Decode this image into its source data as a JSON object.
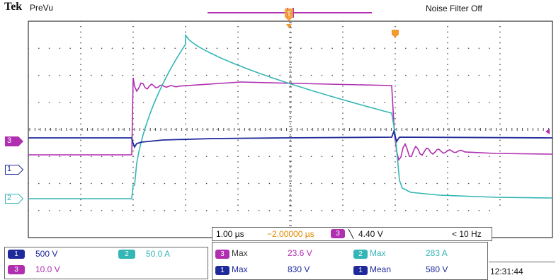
{
  "header": {
    "brand": "Tek",
    "mode": "PreVu",
    "filter_status": "Noise Filter Off"
  },
  "colors": {
    "ch1": "#1f2a9a",
    "ch2": "#35b6b6",
    "ch3": "#b02fb0",
    "trigger": "#f29a2e",
    "grid": "#333333"
  },
  "markers": {
    "ch3": "3",
    "ch1": "1",
    "ch2": "2",
    "trigger_position": "T"
  },
  "timebase": {
    "scale": "1.00 µs",
    "position": "−2.00000 µs",
    "trigger_source": "3",
    "trigger_slope": "╲",
    "trigger_level": "4.40 V",
    "trigger_freq": "< 10 Hz"
  },
  "channels": [
    {
      "id": "1",
      "scale": "500 V"
    },
    {
      "id": "2",
      "scale": "50.0 A"
    },
    {
      "id": "3",
      "scale": "10.0 V"
    }
  ],
  "measurements": [
    {
      "source": "3",
      "type": "Max",
      "value": "23.6 V"
    },
    {
      "source": "2",
      "type": "Max",
      "value": "283 A"
    },
    {
      "source": "1",
      "type": "Max",
      "value": "830 V"
    },
    {
      "source": "1",
      "type": "Mean",
      "value": "580 V"
    }
  ],
  "clock": "12:31:44"
}
